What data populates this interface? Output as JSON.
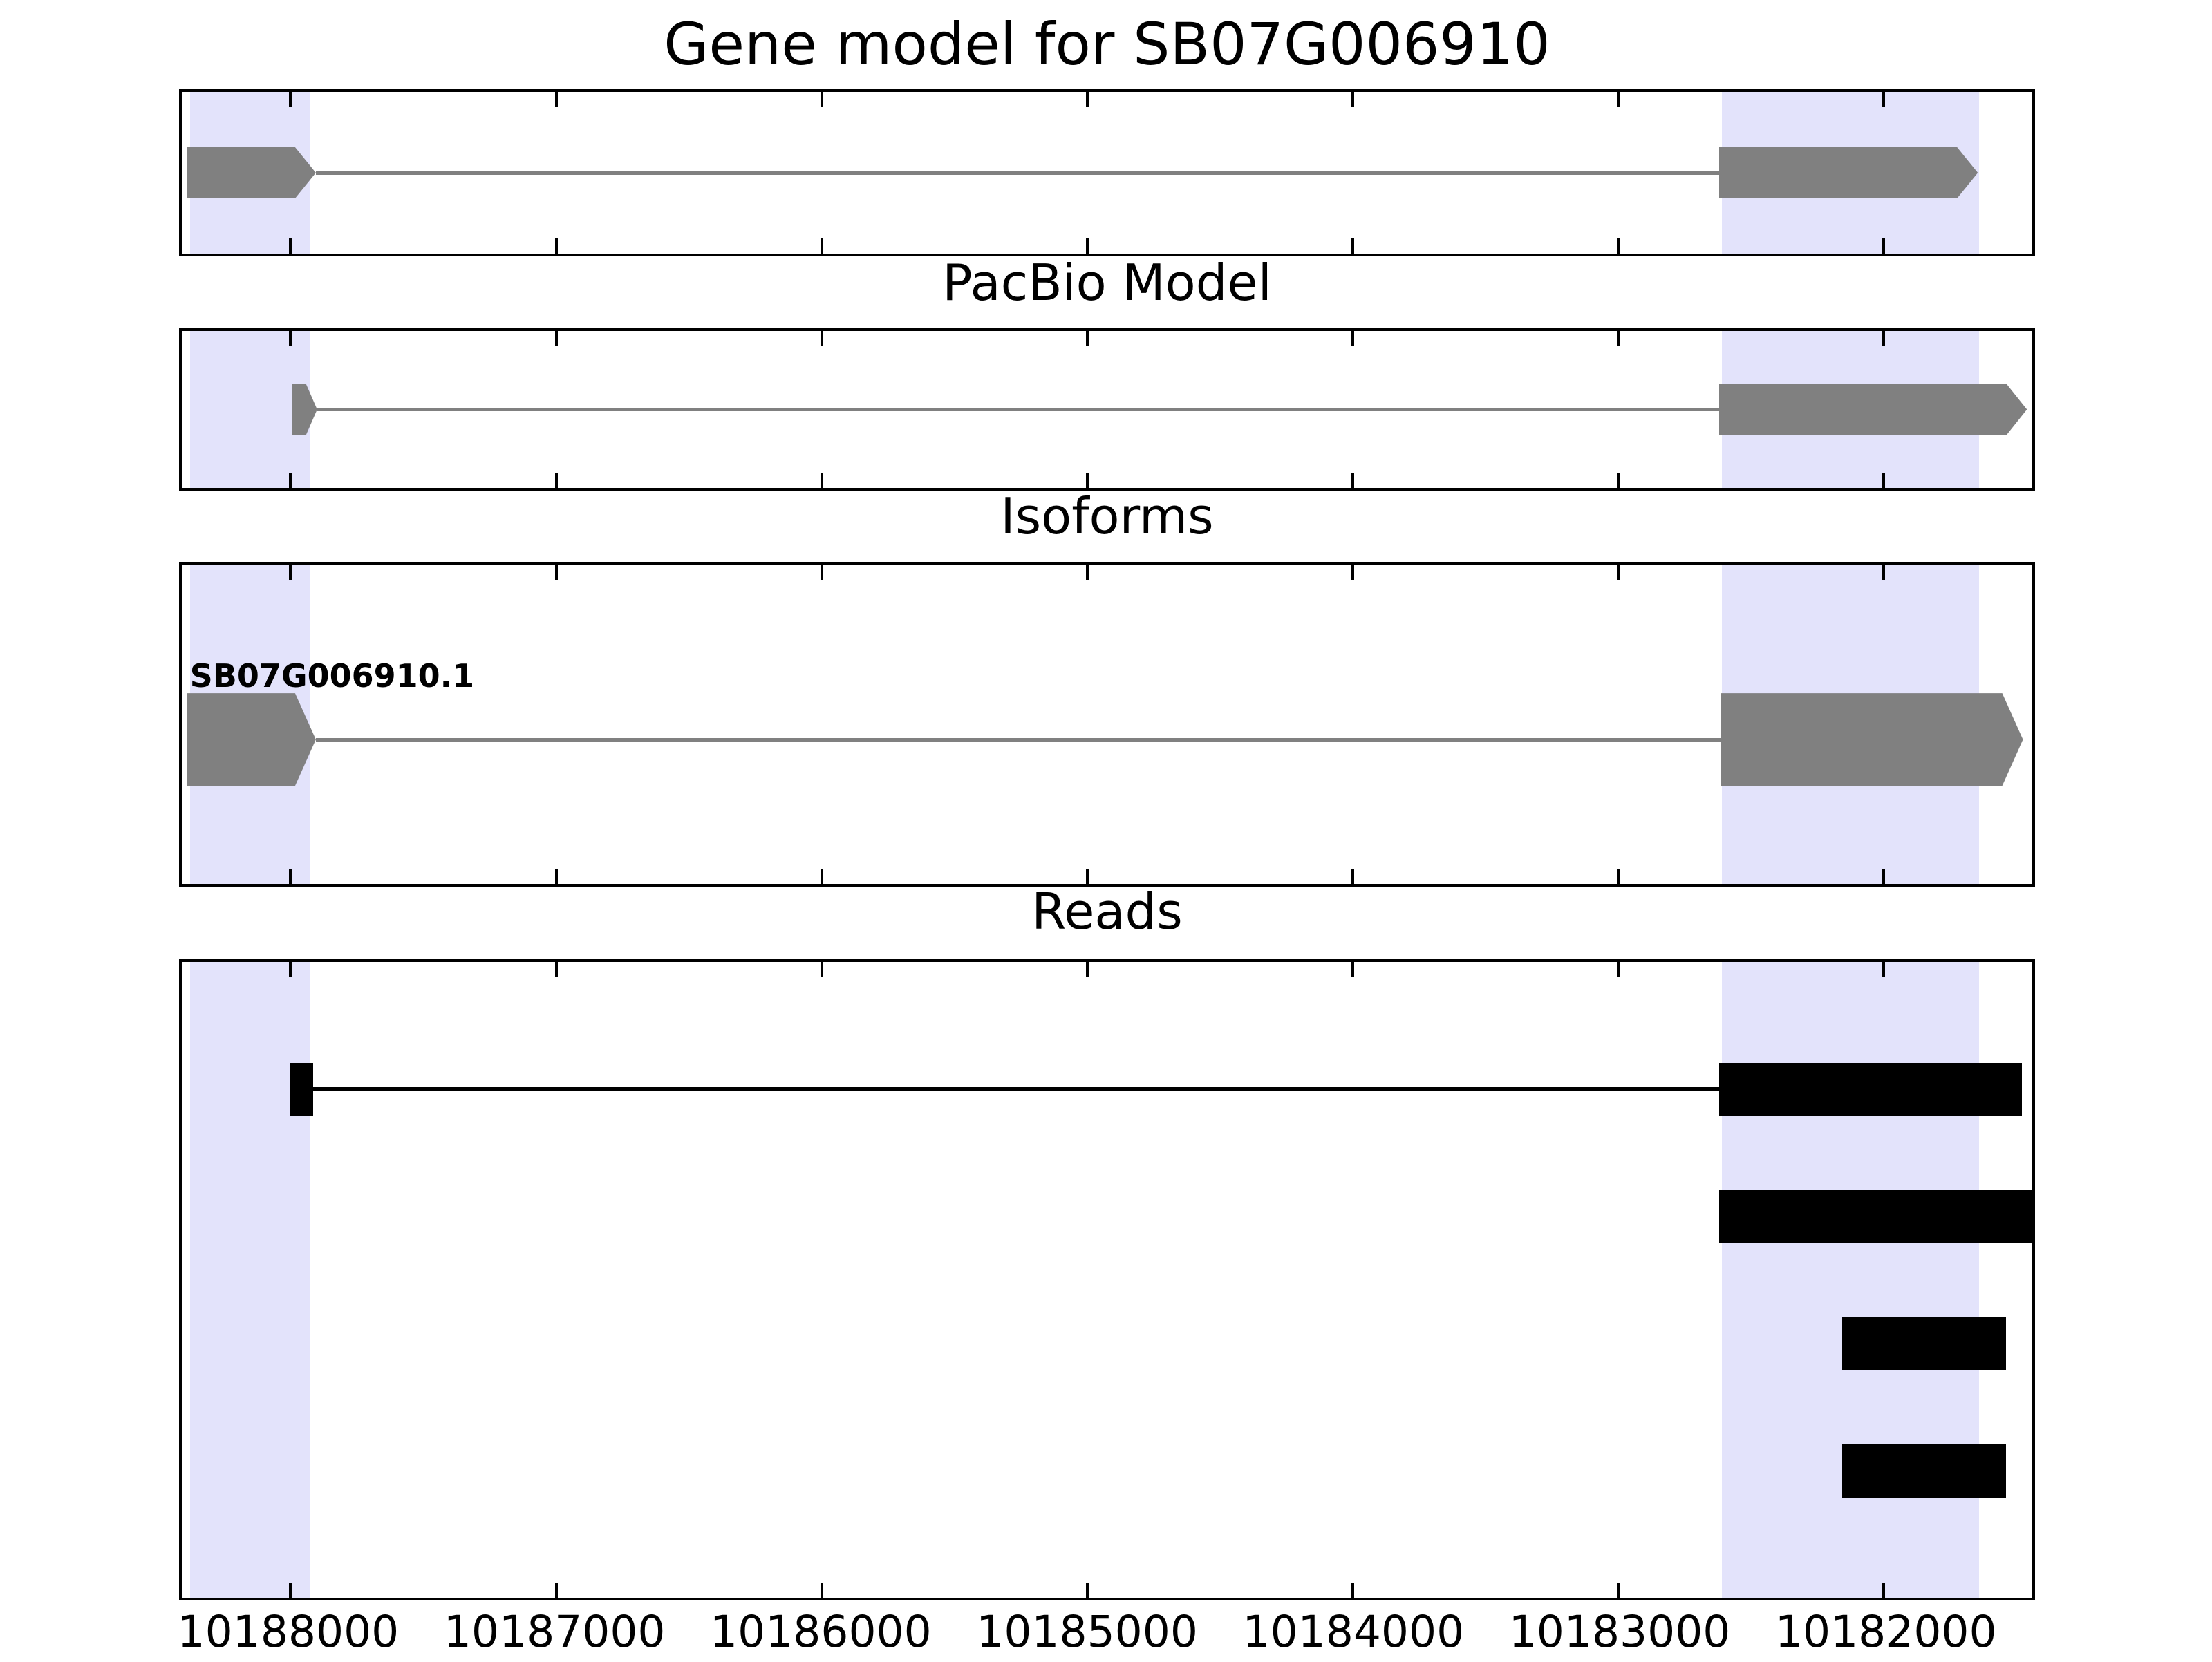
{
  "figure": {
    "background": "#ffffff",
    "colors": {
      "highlight_band": "#e3e3fb",
      "gene_model": "#808080",
      "read": "#000000",
      "panel_border": "#000000",
      "text": "#000000"
    }
  },
  "chart_data": {
    "type": "gene-model-tracks",
    "title": "Gene model for SB07G006910",
    "x_axis": {
      "orientation": "reversed",
      "left_value": 10188410,
      "right_value": 10181440,
      "tick_values": [
        10188000,
        10187000,
        10186000,
        10185000,
        10184000,
        10183000,
        10182000
      ],
      "tick_labels": [
        "10188000",
        "10187000",
        "10186000",
        "10185000",
        "10184000",
        "10183000",
        "10182000"
      ]
    },
    "highlights": [
      {
        "from": 10188380,
        "to": 10187925
      },
      {
        "from": 10182610,
        "to": 10181640
      }
    ],
    "panels": [
      {
        "title": "Gene model for SB07G006910",
        "tracks": [
          {
            "kind": "transcript",
            "color": "#808080",
            "center_frac": 0.5,
            "exon_height": 74,
            "line_height": 5,
            "exons": [
              [
                10188390,
                10187905
              ],
              [
                10182620,
                10181645
              ]
            ],
            "intron": [
              10187905,
              10182620
            ]
          }
        ]
      },
      {
        "title": "PacBio Model",
        "tracks": [
          {
            "kind": "transcript",
            "color": "#808080",
            "center_frac": 0.5,
            "exon_height": 75,
            "line_height": 5,
            "exons": [
              [
                10187995,
                10187900
              ],
              [
                10182620,
                10181460
              ]
            ],
            "intron": [
              10187900,
              10182620
            ]
          }
        ]
      },
      {
        "title": "Isoforms",
        "tracks": [
          {
            "kind": "transcript",
            "label": "SB07G006910.1",
            "color": "#808080",
            "center_frac": 0.548,
            "exon_height": 134,
            "line_height": 5,
            "exons": [
              [
                10188390,
                10187905
              ],
              [
                10182615,
                10181475
              ]
            ],
            "intron": [
              10187905,
              10182615
            ]
          }
        ]
      },
      {
        "title": "Reads",
        "tracks": [
          {
            "kind": "read",
            "color": "#000000",
            "center_frac": 0.2,
            "exon_height": 77,
            "line_height": 6,
            "blocks": [
              [
                10188000,
                10187915
              ],
              [
                10182620,
                10181480
              ]
            ],
            "junction": [
              10187915,
              10182620
            ]
          },
          {
            "kind": "read",
            "color": "#000000",
            "center_frac": 0.4,
            "exon_height": 77,
            "line_height": 6,
            "blocks": [
              [
                10182620,
                10181440
              ]
            ]
          },
          {
            "kind": "read",
            "color": "#000000",
            "center_frac": 0.6,
            "exon_height": 77,
            "line_height": 6,
            "blocks": [
              [
                10182155,
                10181540
              ]
            ]
          },
          {
            "kind": "read",
            "color": "#000000",
            "center_frac": 0.8,
            "exon_height": 77,
            "line_height": 6,
            "blocks": [
              [
                10182155,
                10181540
              ]
            ]
          }
        ]
      }
    ]
  }
}
